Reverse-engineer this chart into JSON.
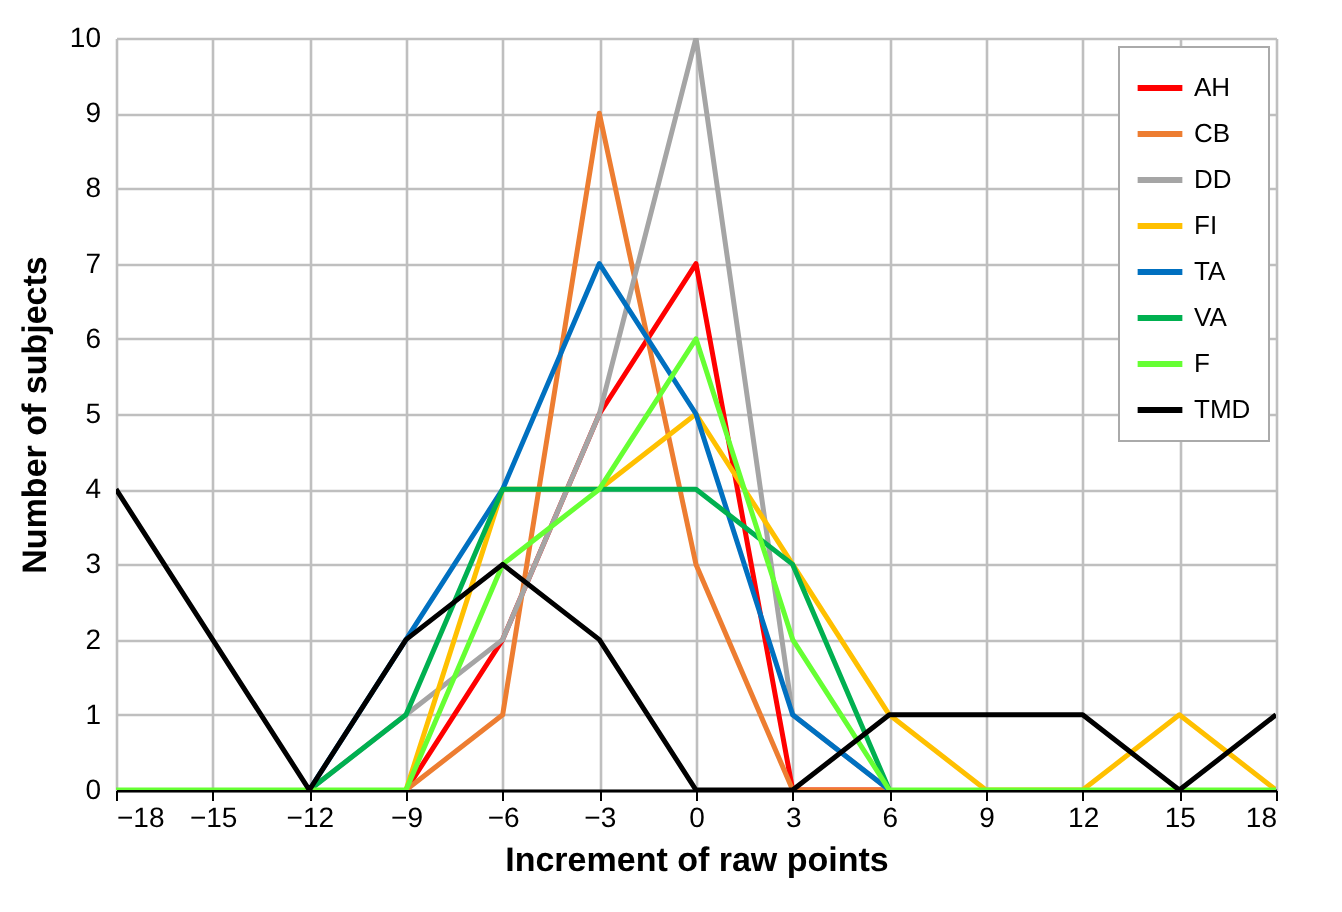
{
  "chart_data": {
    "type": "line",
    "xlabel": "Increment of raw points",
    "ylabel": "Number of subjects",
    "x": [
      -18,
      -15,
      -12,
      -9,
      -6,
      -3,
      0,
      3,
      6,
      9,
      12,
      15,
      18
    ],
    "series": [
      {
        "name": "AH",
        "color": "#ff0000",
        "values": [
          null,
          null,
          null,
          0,
          2,
          5,
          7,
          0,
          0,
          null,
          null,
          null,
          null
        ]
      },
      {
        "name": "CB",
        "color": "#ed7d31",
        "values": [
          null,
          null,
          null,
          0,
          1,
          9,
          3,
          0,
          0,
          null,
          null,
          null,
          null
        ]
      },
      {
        "name": "DD",
        "color": "#a5a5a5",
        "values": [
          null,
          null,
          0,
          1,
          2,
          5,
          10,
          1,
          0,
          null,
          null,
          null,
          null
        ]
      },
      {
        "name": "FI",
        "color": "#ffc000",
        "values": [
          null,
          null,
          null,
          0,
          4,
          4,
          5,
          3,
          1,
          0,
          0,
          1,
          0
        ]
      },
      {
        "name": "TA",
        "color": "#0070c0",
        "values": [
          null,
          null,
          0,
          2,
          4,
          7,
          5,
          1,
          0,
          null,
          null,
          null,
          null
        ]
      },
      {
        "name": "VA",
        "color": "#00b050",
        "values": [
          null,
          null,
          0,
          1,
          4,
          4,
          4,
          3,
          0,
          null,
          null,
          null,
          null
        ]
      },
      {
        "name": "F",
        "color": "#66ff33",
        "values": [
          0,
          0,
          0,
          0,
          3,
          4,
          6,
          2,
          0,
          0,
          0,
          0,
          0
        ]
      },
      {
        "name": "TMD",
        "color": "#000000",
        "values": [
          4,
          2,
          0,
          2,
          3,
          2,
          0,
          0,
          1,
          1,
          1,
          0,
          1
        ]
      }
    ],
    "xlim": [
      -18,
      18
    ],
    "xticks": [
      -18,
      -15,
      -12,
      -9,
      -6,
      -3,
      0,
      3,
      6,
      9,
      12,
      15,
      18
    ],
    "ylim": [
      0,
      10
    ],
    "yticks": [
      0,
      1,
      2,
      3,
      4,
      5,
      6,
      7,
      8,
      9,
      10
    ],
    "grid": true,
    "legend": "top right",
    "marker": "none",
    "line_style": "solid"
  }
}
